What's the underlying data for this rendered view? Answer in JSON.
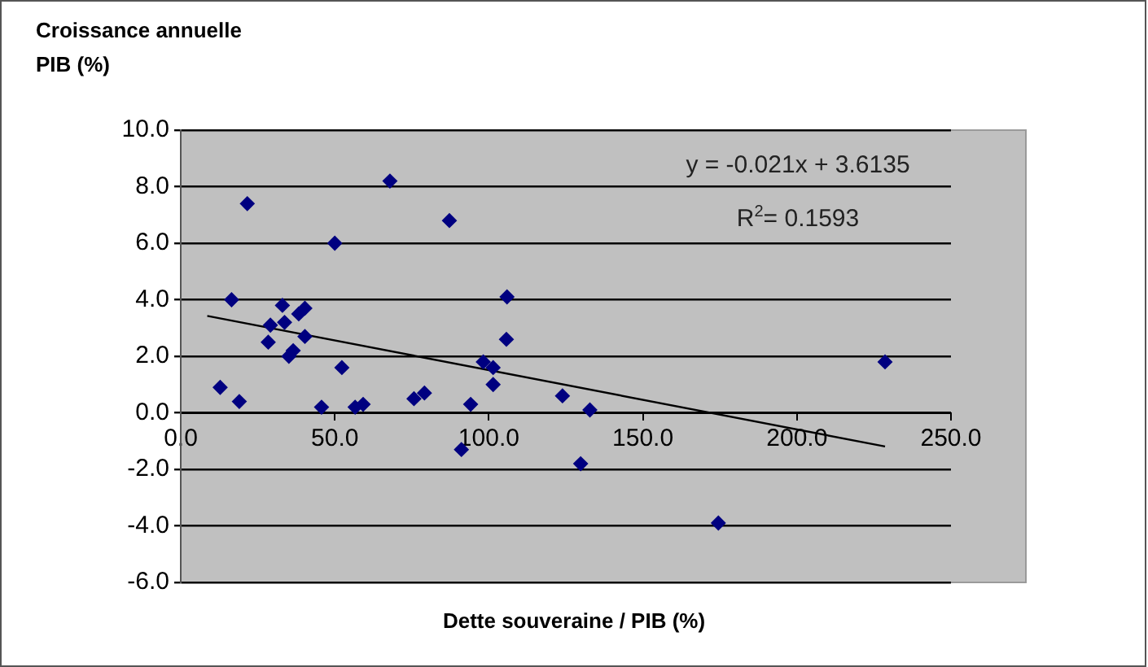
{
  "chart_data": {
    "type": "scatter",
    "ylabel": "Croissance annuelle\nPIB (%)",
    "xlabel": "Dette souveraine / PIB (%)",
    "marker": "diamond",
    "grid": "y",
    "xlim": [
      0,
      250
    ],
    "xticks": [
      {
        "value": 0,
        "label": "0.0"
      },
      {
        "value": 50,
        "label": "50.0"
      },
      {
        "value": 100,
        "label": "100.0"
      },
      {
        "value": 150,
        "label": "150.0"
      },
      {
        "value": 200,
        "label": "200.0"
      },
      {
        "value": 250,
        "label": "250.0"
      }
    ],
    "ylim": [
      -6,
      10
    ],
    "yticks": [
      {
        "value": -6,
        "label": "-6.0"
      },
      {
        "value": -4,
        "label": "-4.0"
      },
      {
        "value": -2,
        "label": "-2.0"
      },
      {
        "value": 0,
        "label": "0.0"
      },
      {
        "value": 2,
        "label": "2.0"
      },
      {
        "value": 4,
        "label": "4.0"
      },
      {
        "value": 6,
        "label": "6.0"
      },
      {
        "value": 8,
        "label": "8.0"
      },
      {
        "value": 10,
        "label": "10.0"
      }
    ],
    "annotations": [
      "y = -0.021x + 3.6135",
      "R$^{2}$= 0.1593"
    ],
    "series": [
      {
        "color": "#000080",
        "x": [
          21.6,
          67.9,
          87.2,
          50.0,
          16.5,
          105.9,
          33.0,
          40.3,
          38.3,
          29.1,
          33.7,
          40.3,
          28.4,
          105.7,
          36.5,
          35.1,
          52.3,
          98.2,
          101.4,
          101.4,
          12.8,
          19.0,
          45.7,
          56.6,
          59.2,
          75.7,
          79.1,
          94.1,
          123.9,
          132.8,
          129.8,
          91.1,
          228.6,
          174.5
        ],
        "values": [
          7.4,
          8.2,
          6.8,
          6.0,
          4.0,
          4.1,
          3.8,
          3.7,
          3.5,
          3.1,
          3.2,
          2.7,
          2.5,
          2.6,
          2.2,
          2.0,
          1.6,
          1.8,
          1.6,
          1.0,
          0.9,
          0.4,
          0.2,
          0.2,
          0.3,
          0.5,
          0.7,
          0.3,
          0.6,
          0.1,
          -1.8,
          -1.3,
          1.8,
          -3.9
        ]
      },
      {
        "type": "line",
        "color": "#000000",
        "marker": "none",
        "x": [
          8.6,
          228.6
        ],
        "values": [
          3.43,
          -1.19
        ]
      }
    ]
  }
}
